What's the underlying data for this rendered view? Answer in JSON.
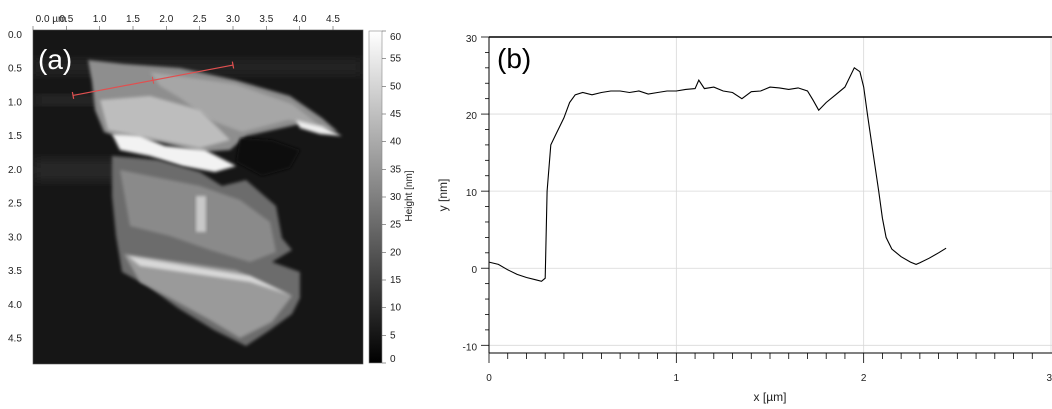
{
  "chart_data": [
    {
      "panel": "(a)",
      "type": "heatmap",
      "x_ticks": [
        "0.0 µm",
        "0.5",
        "1.0",
        "1.5",
        "2.0",
        "2.5",
        "3.0",
        "3.5",
        "4.0",
        "4.5"
      ],
      "x_tick_values": [
        0.0,
        0.5,
        1.0,
        1.5,
        2.0,
        2.5,
        3.0,
        3.5,
        4.0,
        4.5
      ],
      "y_ticks": [
        "0.0",
        "0.5",
        "1.0",
        "1.5",
        "2.0",
        "2.5",
        "3.0",
        "3.5",
        "4.0",
        "4.5"
      ],
      "y_tick_values": [
        0.0,
        0.5,
        1.0,
        1.5,
        2.0,
        2.5,
        3.0,
        3.5,
        4.0,
        4.5
      ],
      "xlim": [
        0,
        4.95
      ],
      "ylim": [
        0,
        4.95
      ],
      "colorbar": {
        "label": "Height [nm]",
        "ticks": [
          "0",
          "5",
          "10",
          "15",
          "20",
          "25",
          "30",
          "35",
          "40",
          "45",
          "50",
          "55",
          "60"
        ],
        "range": [
          0,
          60
        ],
        "colors": [
          "#000000",
          "#ffffff"
        ]
      },
      "profile_line": {
        "start": [
          0.6,
          0.97
        ],
        "end": [
          3.0,
          0.52
        ],
        "color": "#e05050"
      }
    },
    {
      "panel": "(b)",
      "type": "line",
      "xlabel": "x [µm]",
      "ylabel": "y [nm]",
      "xlim": [
        0,
        3
      ],
      "ylim": [
        -11,
        30
      ],
      "x_ticks": [
        0,
        1,
        2,
        3
      ],
      "y_ticks": [
        -10,
        0,
        10,
        20,
        30
      ],
      "grid": true,
      "series": [
        {
          "color": "#000000",
          "x": [
            0,
            0.05,
            0.1,
            0.15,
            0.2,
            0.25,
            0.28,
            0.3,
            0.31,
            0.33,
            0.36,
            0.4,
            0.43,
            0.46,
            0.5,
            0.55,
            0.6,
            0.65,
            0.7,
            0.75,
            0.8,
            0.85,
            0.9,
            0.95,
            1.0,
            1.05,
            1.1,
            1.12,
            1.15,
            1.2,
            1.25,
            1.3,
            1.35,
            1.4,
            1.45,
            1.5,
            1.55,
            1.6,
            1.65,
            1.7,
            1.73,
            1.76,
            1.8,
            1.85,
            1.9,
            1.95,
            1.98,
            2.0,
            2.02,
            2.05,
            2.08,
            2.1,
            2.12,
            2.15,
            2.2,
            2.25,
            2.28,
            2.3,
            2.35,
            2.4,
            2.44
          ],
          "y": [
            0.8,
            0.5,
            -0.2,
            -0.8,
            -1.2,
            -1.5,
            -1.7,
            -1.3,
            10,
            16,
            17.5,
            19.5,
            21.5,
            22.5,
            22.8,
            22.5,
            22.8,
            23.0,
            23.0,
            22.8,
            23.0,
            22.6,
            22.8,
            23.0,
            23.0,
            23.2,
            23.3,
            24.4,
            23.3,
            23.5,
            23.0,
            22.8,
            22.0,
            22.9,
            23.0,
            23.5,
            23.4,
            23.2,
            23.4,
            23.0,
            21.8,
            20.5,
            21.5,
            22.5,
            23.5,
            26.0,
            25.5,
            23.5,
            20.0,
            15.0,
            10.0,
            6.5,
            4.0,
            2.5,
            1.5,
            0.8,
            0.5,
            0.7,
            1.3,
            2.0,
            2.6
          ]
        }
      ]
    }
  ]
}
